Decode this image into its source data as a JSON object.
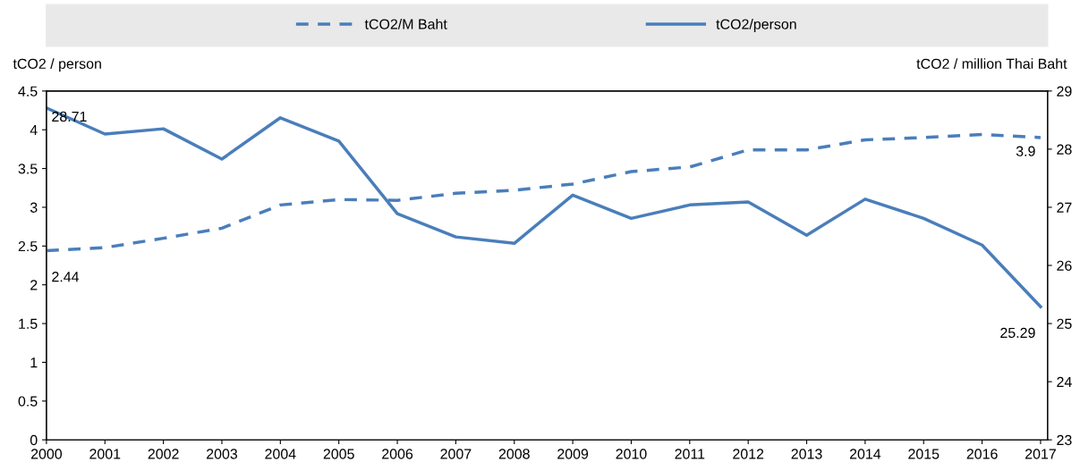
{
  "chart_data": {
    "type": "line",
    "ylabel": "tCO2 / person",
    "y2label": "tCO2 / million Thai Baht",
    "x": [
      2000,
      2001,
      2002,
      2003,
      2004,
      2005,
      2006,
      2007,
      2008,
      2009,
      2010,
      2011,
      2012,
      2013,
      2014,
      2015,
      2016,
      2017
    ],
    "xlim": [
      2000,
      2017.12
    ],
    "xticks": [
      2000,
      2001,
      2002,
      2003,
      2004,
      2005,
      2006,
      2007,
      2008,
      2009,
      2010,
      2011,
      2012,
      2013,
      2014,
      2015,
      2016,
      2017
    ],
    "ylim": [
      0,
      4.5
    ],
    "yticks": [
      0,
      0.5,
      1,
      1.5,
      2,
      2.5,
      3,
      3.5,
      4,
      4.5
    ],
    "y2lim": [
      23,
      29
    ],
    "y2ticks": [
      23,
      24,
      25,
      26,
      27,
      28,
      29
    ],
    "series": [
      {
        "name": "tCO2/M Baht",
        "color": "#4a7ebb",
        "line_style": "dashed",
        "values": [
          2.44,
          2.48,
          2.6,
          2.73,
          3.03,
          3.1,
          3.09,
          3.18,
          3.22,
          3.3,
          3.46,
          3.52,
          3.74,
          3.74,
          3.87,
          3.9,
          3.94,
          3.9
        ],
        "value_labels": [
          "2.44",
          null,
          null,
          null,
          null,
          null,
          null,
          null,
          null,
          null,
          null,
          null,
          null,
          null,
          null,
          null,
          null,
          "3.9"
        ]
      },
      {
        "name": "tCO2/person",
        "color": "#4a7ebb",
        "line_style": "solid",
        "axis": "y2",
        "values": [
          28.71,
          28.26,
          28.35,
          27.83,
          28.54,
          28.14,
          26.89,
          26.49,
          26.38,
          27.21,
          26.81,
          27.04,
          27.09,
          26.52,
          27.14,
          26.81,
          26.35,
          25.29
        ],
        "value_labels": [
          "28.71",
          null,
          null,
          null,
          null,
          null,
          null,
          null,
          null,
          null,
          null,
          null,
          null,
          null,
          null,
          null,
          null,
          "25.29"
        ]
      }
    ],
    "legend": "top",
    "grid": false,
    "marker": "none"
  }
}
